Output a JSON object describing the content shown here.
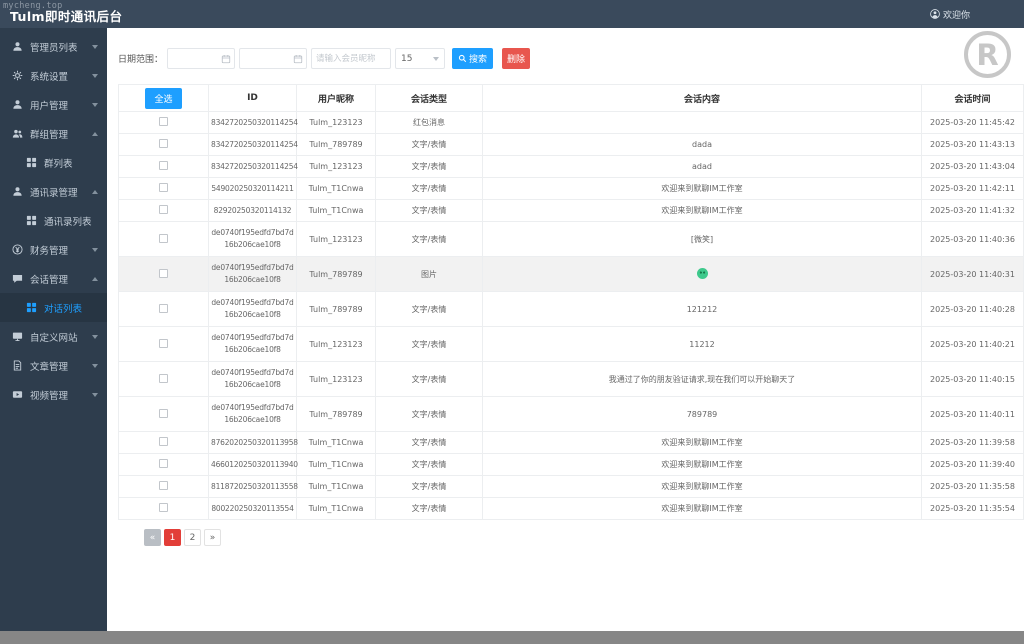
{
  "watermark": "mycheng.top",
  "logo_mark": "R",
  "header": {
    "title": "Tulm即时通讯后台",
    "welcome": "欢迎你"
  },
  "sidebar": {
    "items": [
      {
        "label": "管理员列表",
        "icon": "user",
        "type": "parent",
        "chevron": "down",
        "active": false
      },
      {
        "label": "系统设置",
        "icon": "gear",
        "type": "parent",
        "chevron": "down",
        "active": false
      },
      {
        "label": "用户管理",
        "icon": "user",
        "type": "parent",
        "chevron": "down",
        "active": false
      },
      {
        "label": "群组管理",
        "icon": "users",
        "type": "parent",
        "chevron": "up",
        "active": false
      },
      {
        "label": "群列表",
        "icon": "grid",
        "type": "sub",
        "active": false
      },
      {
        "label": "通讯录管理",
        "icon": "user",
        "type": "parent",
        "chevron": "up",
        "active": false
      },
      {
        "label": "通讯录列表",
        "icon": "grid",
        "type": "sub",
        "active": false
      },
      {
        "label": "财务管理",
        "icon": "money",
        "type": "parent",
        "chevron": "down",
        "active": false
      },
      {
        "label": "会话管理",
        "icon": "chat",
        "type": "parent",
        "chevron": "up",
        "active": false
      },
      {
        "label": "对话列表",
        "icon": "grid",
        "type": "sub",
        "active": true
      },
      {
        "label": "自定义网站",
        "icon": "monitor",
        "type": "parent",
        "chevron": "down",
        "active": false
      },
      {
        "label": "文章管理",
        "icon": "doc",
        "type": "parent",
        "chevron": "down",
        "active": false
      },
      {
        "label": "视频管理",
        "icon": "video",
        "type": "parent",
        "chevron": "down",
        "active": false
      }
    ]
  },
  "toolbar": {
    "date_label": "日期范围：",
    "date_from_value": "",
    "date_to_value": "",
    "nickname_placeholder": "请输入会员昵称",
    "nickname_value": "",
    "page_size": "15",
    "search_label": "搜索",
    "delete_label": "删除"
  },
  "table": {
    "select_all_label": "全选",
    "columns": [
      "ID",
      "用户昵称",
      "会话类型",
      "会话内容",
      "会话时间"
    ],
    "rows": [
      {
        "id": "8342720250320114254",
        "nickname": "Tulm_123123",
        "type": "红包消息",
        "content": "",
        "time": "2025-03-20 11:45:42",
        "highlight": false
      },
      {
        "id": "8342720250320114254",
        "nickname": "Tulm_789789",
        "type": "文字/表情",
        "content": "dada",
        "time": "2025-03-20 11:43:13",
        "highlight": false
      },
      {
        "id": "8342720250320114254",
        "nickname": "Tulm_123123",
        "type": "文字/表情",
        "content": "adad",
        "time": "2025-03-20 11:43:04",
        "highlight": false
      },
      {
        "id": "549020250320114211",
        "nickname": "Tulm_T1Cnwa",
        "type": "文字/表情",
        "content": "欢迎来到默聊IM工作室",
        "time": "2025-03-20 11:42:11",
        "highlight": false
      },
      {
        "id": "82920250320114132",
        "nickname": "Tulm_T1Cnwa",
        "type": "文字/表情",
        "content": "欢迎来到默聊IM工作室",
        "time": "2025-03-20 11:41:32",
        "highlight": false
      },
      {
        "id": "de0740f195edfd7bd7d16b206cae10f8",
        "nickname": "Tulm_123123",
        "type": "文字/表情",
        "content": "[微笑]",
        "time": "2025-03-20 11:40:36",
        "highlight": false
      },
      {
        "id": "de0740f195edfd7bd7d16b206cae10f8",
        "nickname": "Tulm_789789",
        "type": "图片",
        "content": "",
        "content_kind": "emoji-image",
        "time": "2025-03-20 11:40:31",
        "highlight": true
      },
      {
        "id": "de0740f195edfd7bd7d16b206cae10f8",
        "nickname": "Tulm_789789",
        "type": "文字/表情",
        "content": "121212",
        "time": "2025-03-20 11:40:28",
        "highlight": false
      },
      {
        "id": "de0740f195edfd7bd7d16b206cae10f8",
        "nickname": "Tulm_123123",
        "type": "文字/表情",
        "content": "11212",
        "time": "2025-03-20 11:40:21",
        "highlight": false
      },
      {
        "id": "de0740f195edfd7bd7d16b206cae10f8",
        "nickname": "Tulm_123123",
        "type": "文字/表情",
        "content": "我通过了你的朋友验证请求,现在我们可以开始聊天了",
        "time": "2025-03-20 11:40:15",
        "highlight": false
      },
      {
        "id": "de0740f195edfd7bd7d16b206cae10f8",
        "nickname": "Tulm_789789",
        "type": "文字/表情",
        "content": "789789",
        "time": "2025-03-20 11:40:11",
        "highlight": false
      },
      {
        "id": "8762020250320113958",
        "nickname": "Tulm_T1Cnwa",
        "type": "文字/表情",
        "content": "欢迎来到默聊IM工作室",
        "time": "2025-03-20 11:39:58",
        "highlight": false
      },
      {
        "id": "4660120250320113940",
        "nickname": "Tulm_T1Cnwa",
        "type": "文字/表情",
        "content": "欢迎来到默聊IM工作室",
        "time": "2025-03-20 11:39:40",
        "highlight": false
      },
      {
        "id": "8118720250320113558",
        "nickname": "Tulm_T1Cnwa",
        "type": "文字/表情",
        "content": "欢迎来到默聊IM工作室",
        "time": "2025-03-20 11:35:58",
        "highlight": false
      },
      {
        "id": "800220250320113554",
        "nickname": "Tulm_T1Cnwa",
        "type": "文字/表情",
        "content": "欢迎来到默聊IM工作室",
        "time": "2025-03-20 11:35:54",
        "highlight": false
      }
    ]
  },
  "pagination": {
    "items": [
      {
        "label": "«",
        "state": "disabled"
      },
      {
        "label": "1",
        "state": "active"
      },
      {
        "label": "2",
        "state": "normal"
      },
      {
        "label": "»",
        "state": "normal"
      }
    ]
  },
  "colors": {
    "header_bg": "#3a4a5c",
    "sidebar_bg": "#2e3d4d",
    "accent_blue": "#1e9fff",
    "danger_red": "#e8564e",
    "pager_active_red": "#e23e38",
    "emoji_green": "#3ec98c",
    "row_highlight": "#f2f2f2"
  }
}
